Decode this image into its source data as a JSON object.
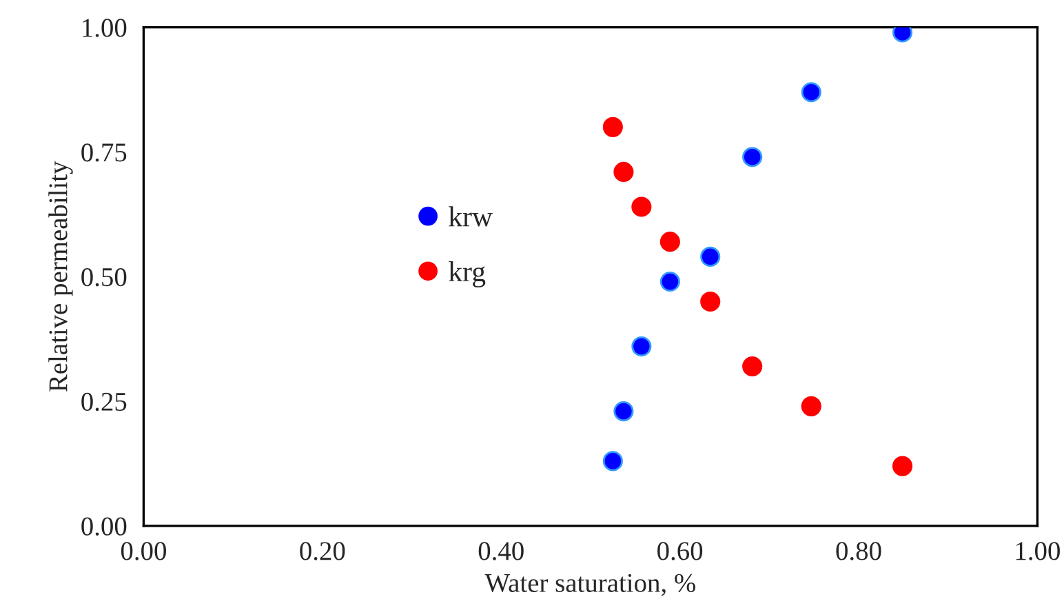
{
  "chart_data": {
    "type": "scatter",
    "xlabel": "Water saturation, %",
    "ylabel": "Relative permeability",
    "xlim": [
      0,
      1
    ],
    "ylim": [
      0,
      1
    ],
    "xticks": [
      {
        "value": 0,
        "label": "0.00"
      },
      {
        "value": 0.2,
        "label": "0.20"
      },
      {
        "value": 0.4,
        "label": "0.40"
      },
      {
        "value": 0.6,
        "label": "0.60"
      },
      {
        "value": 0.8,
        "label": "0.80"
      },
      {
        "value": 1,
        "label": "1.00"
      }
    ],
    "yticks": [
      {
        "value": 0,
        "label": "0.00"
      },
      {
        "value": 0.25,
        "label": "0.25"
      },
      {
        "value": 0.5,
        "label": "0.50"
      },
      {
        "value": 0.75,
        "label": "0.75"
      },
      {
        "value": 1,
        "label": "1.00"
      }
    ],
    "marker": "circle",
    "grid": false,
    "legend": "center",
    "series": [
      {
        "name": "krw",
        "color": "#0000ff",
        "x": [
          0.525,
          0.537,
          0.557,
          0.589,
          0.634,
          0.681,
          0.747,
          0.849
        ],
        "values": [
          0.13,
          0.23,
          0.36,
          0.49,
          0.54,
          0.74,
          0.87,
          0.99
        ]
      },
      {
        "name": "krg",
        "color": "#ff0000",
        "x": [
          0.525,
          0.537,
          0.557,
          0.589,
          0.634,
          0.681,
          0.747,
          0.849
        ],
        "values": [
          0.8,
          0.71,
          0.64,
          0.57,
          0.45,
          0.32,
          0.24,
          0.12
        ]
      }
    ]
  }
}
